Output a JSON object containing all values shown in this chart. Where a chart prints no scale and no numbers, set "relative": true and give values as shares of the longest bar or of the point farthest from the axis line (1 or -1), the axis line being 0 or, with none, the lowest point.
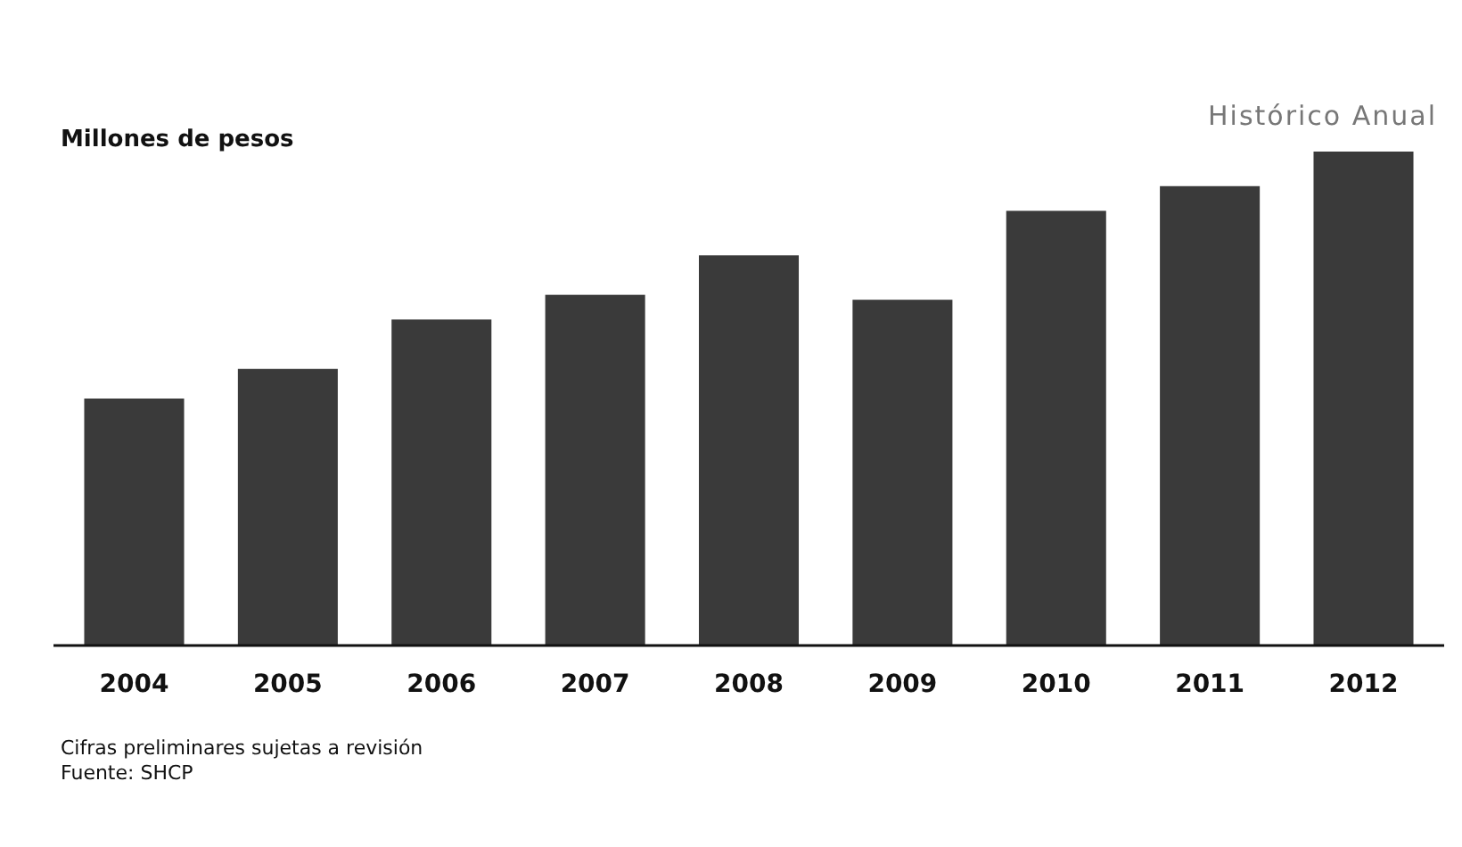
{
  "chart_data": {
    "type": "bar",
    "title": "Histórico Anual",
    "ylabel": "Millones de pesos",
    "relative": true,
    "categories": [
      "2004",
      "2005",
      "2006",
      "2007",
      "2008",
      "2009",
      "2010",
      "2011",
      "2012"
    ],
    "values": [
      0.5,
      0.56,
      0.66,
      0.71,
      0.79,
      0.7,
      0.88,
      0.93,
      1
    ],
    "color": "#3a3a3a",
    "annotations": [
      "Cifras preliminares sujetas a revisión",
      "Fuente: SHCP"
    ]
  }
}
